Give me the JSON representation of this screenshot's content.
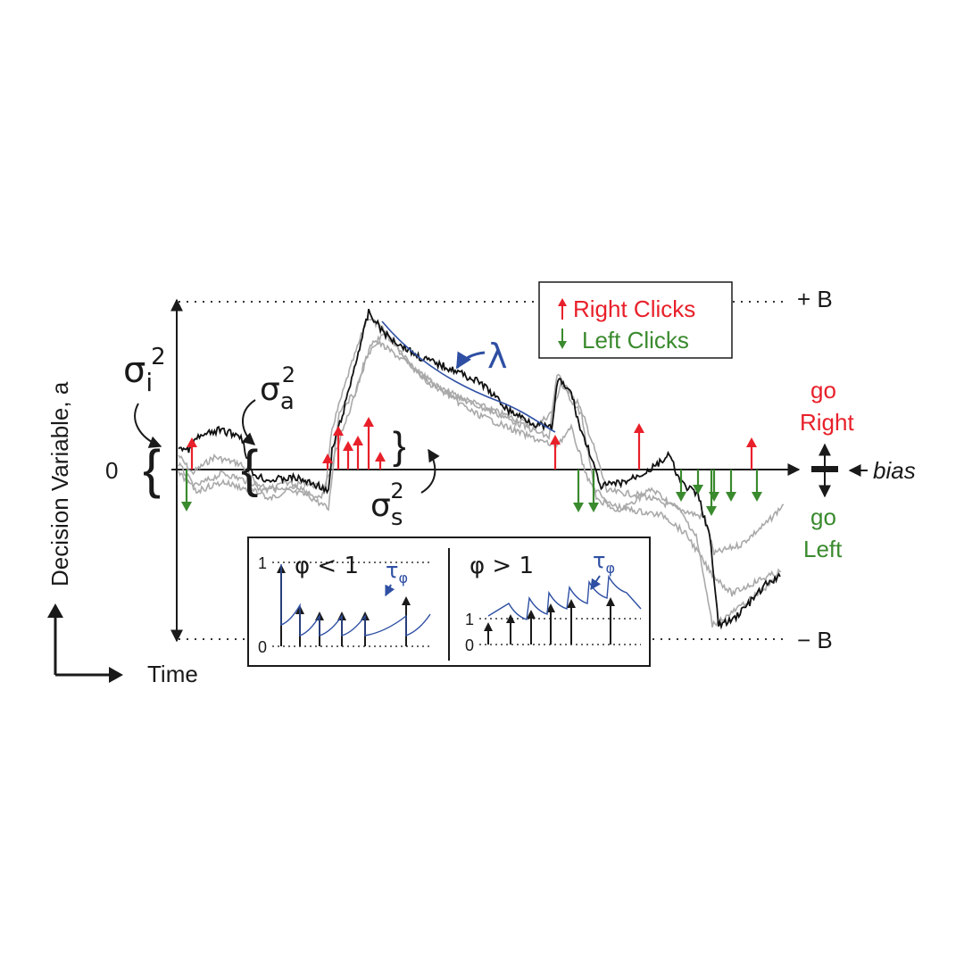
{
  "axes": {
    "ylabel": "Decision Variable, a",
    "xlabel": "Time",
    "zero_label": "0",
    "upper_bound_label": "+ B",
    "lower_bound_label": "− B"
  },
  "legend": {
    "right_label": "Right Clicks",
    "left_label": "Left Clicks",
    "right_color": "#e8202a",
    "left_color": "#3a8a2e"
  },
  "annotations": {
    "sigma": "σ",
    "exponent": "2",
    "sigma_i_sub": "i",
    "sigma_a_sub": "a",
    "sigma_s_sub": "s",
    "lambda": "λ",
    "go_label_1": "go",
    "right_word": "Right",
    "go_label_2": "go",
    "left_word": "Left",
    "bias": "bias"
  },
  "inset": {
    "left_panel": {
      "phi_label": "φ <  1",
      "tau_sym": "τ",
      "tau_sub": "φ",
      "y_top": "1",
      "y_bottom": "0"
    },
    "right_panel": {
      "phi_label": "φ >  1",
      "tau_sym": "τ",
      "tau_sub": "φ",
      "y_top": "1",
      "y_bottom": "0"
    }
  },
  "colors": {
    "black_trace": "#111111",
    "gray_trace": "#a9a9a9",
    "blue": "#2e4fa3",
    "axis": "#1a1a1a"
  }
}
